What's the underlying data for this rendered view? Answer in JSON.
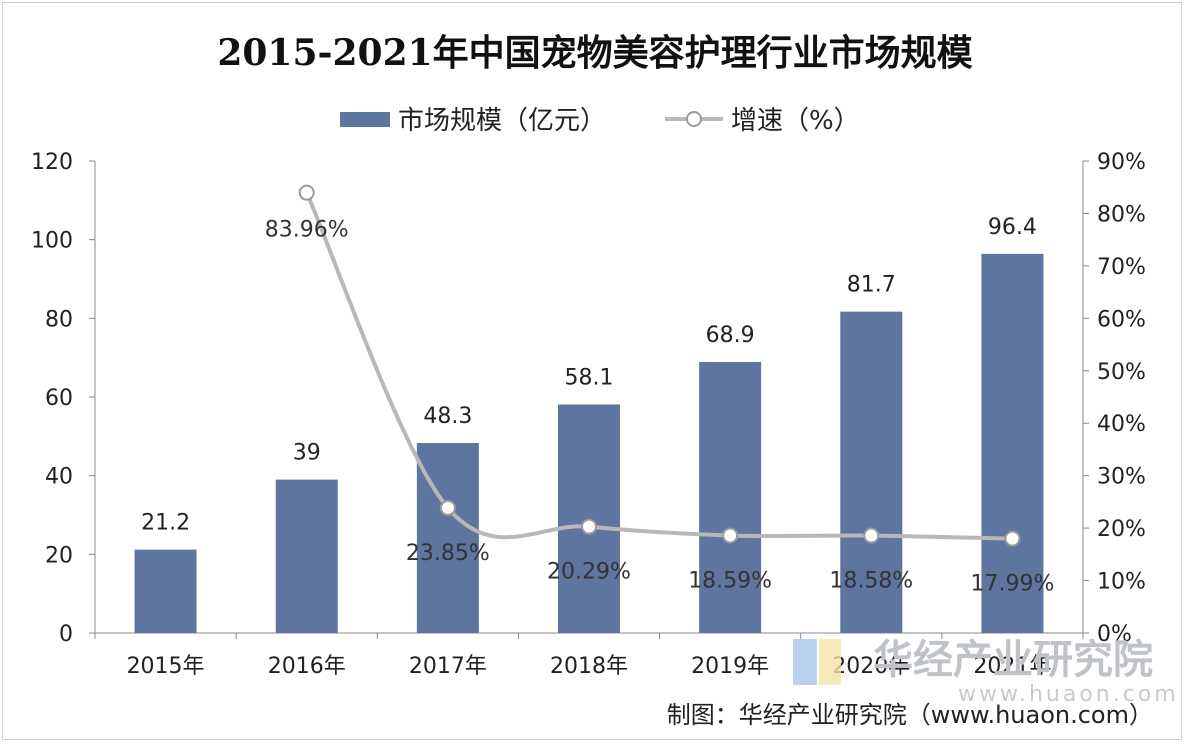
{
  "chart_data": {
    "type": "bar",
    "title": "2015-2021年中国宠物美容护理行业市场规模",
    "categories": [
      "2015年",
      "2016年",
      "2017年",
      "2018年",
      "2019年",
      "2020年",
      "2021年"
    ],
    "series": [
      {
        "name": "市场规模（亿元）",
        "type": "bar",
        "axis": "left",
        "values": [
          21.2,
          39,
          48.3,
          58.1,
          68.9,
          81.7,
          96.4
        ],
        "labels": [
          "21.2",
          "39",
          "48.3",
          "58.1",
          "68.9",
          "81.7",
          "96.4"
        ]
      },
      {
        "name": "增速（%）",
        "type": "line",
        "axis": "right",
        "values": [
          null,
          83.96,
          23.85,
          20.29,
          18.59,
          18.58,
          17.99
        ],
        "labels": [
          "",
          "83.96%",
          "23.85%",
          "20.29%",
          "18.59%",
          "18.58%",
          "17.99%"
        ]
      }
    ],
    "y_left": {
      "ylim": [
        0,
        120
      ],
      "ticks": [
        "0",
        "20",
        "40",
        "60",
        "80",
        "100",
        "120"
      ]
    },
    "y_right": {
      "ylim": [
        0,
        90
      ],
      "ticks": [
        "0%",
        "10%",
        "20%",
        "30%",
        "40%",
        "50%",
        "60%",
        "70%",
        "80%",
        "90%"
      ]
    },
    "grid": false,
    "legend_position": "top-center",
    "colors": {
      "bar": "#5e75a0",
      "line": "#b8b8b8",
      "marker_fill": "#ffffff",
      "marker_stroke": "#9a9a9a"
    }
  },
  "watermark": {
    "name": "华经产业研究院",
    "url": "www.huaon.com"
  },
  "source": "制图：华经产业研究院（www.huaon.com）"
}
